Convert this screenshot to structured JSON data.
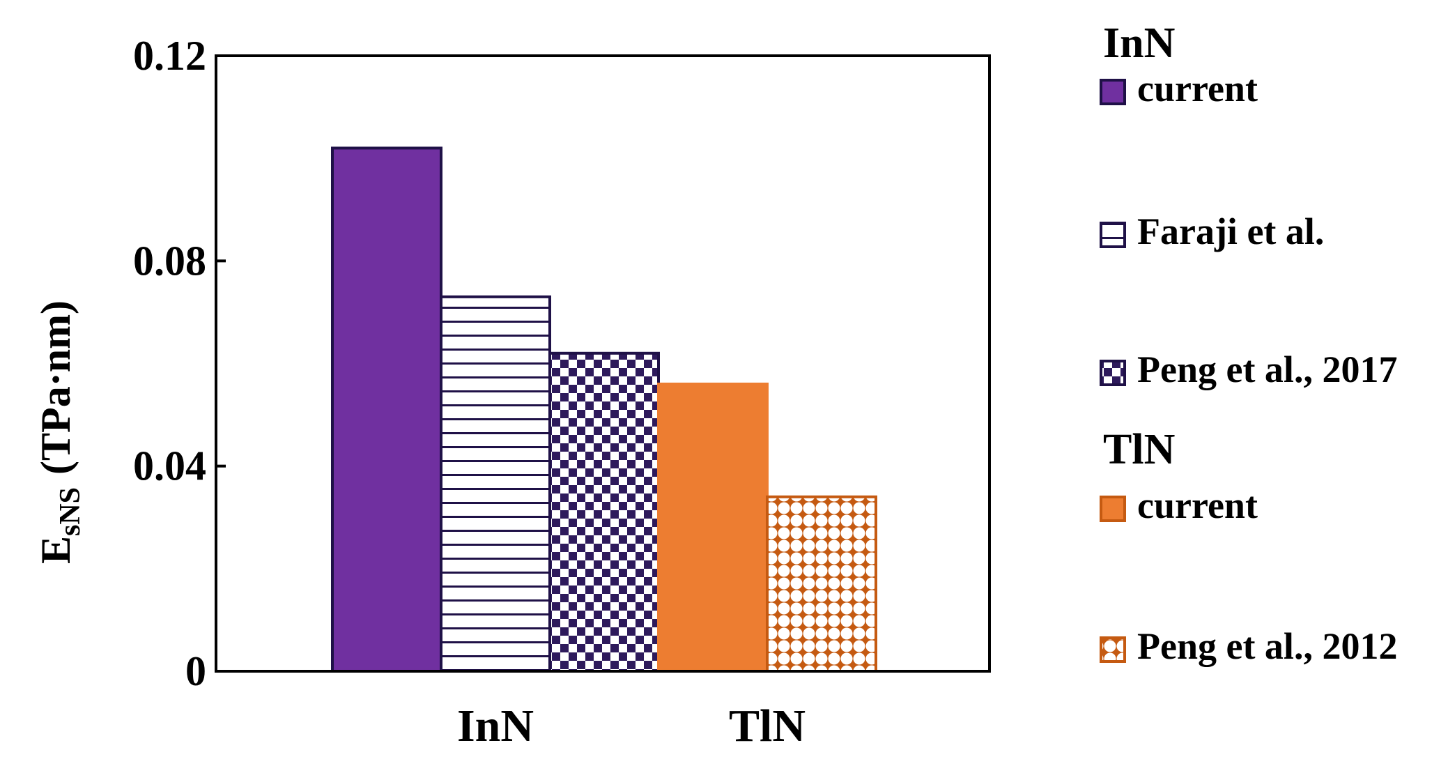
{
  "chart_data": {
    "type": "bar",
    "ylabel": {
      "main": "E",
      "subscript": "sNS",
      "unit": "(TPa·nm)"
    },
    "ylim": [
      0,
      0.12
    ],
    "yticks": [
      {
        "value": 0,
        "label": "0"
      },
      {
        "value": 0.04,
        "label": "0.04"
      },
      {
        "value": 0.08,
        "label": "0.08"
      },
      {
        "value": 0.12,
        "label": "0.12"
      }
    ],
    "grid": false,
    "legend_position": "right",
    "groups": [
      {
        "name": "InN",
        "bars": [
          {
            "label": "current",
            "value": 0.102,
            "fill": "#7030a0",
            "pattern": "solid"
          },
          {
            "label": "Faraji et al.",
            "value": 0.073,
            "fill": "#2e1a5c",
            "pattern": "horizontal-lines"
          },
          {
            "label": "Peng et al., 2017",
            "value": 0.062,
            "fill": "#2e1a5c",
            "pattern": "checker"
          }
        ]
      },
      {
        "name": "TlN",
        "bars": [
          {
            "label": "current",
            "value": 0.056,
            "fill": "#ed7d31",
            "pattern": "solid"
          },
          {
            "label": "Peng et al., 2012",
            "value": 0.034,
            "fill": "#c55a11",
            "pattern": "dots"
          }
        ]
      }
    ]
  }
}
